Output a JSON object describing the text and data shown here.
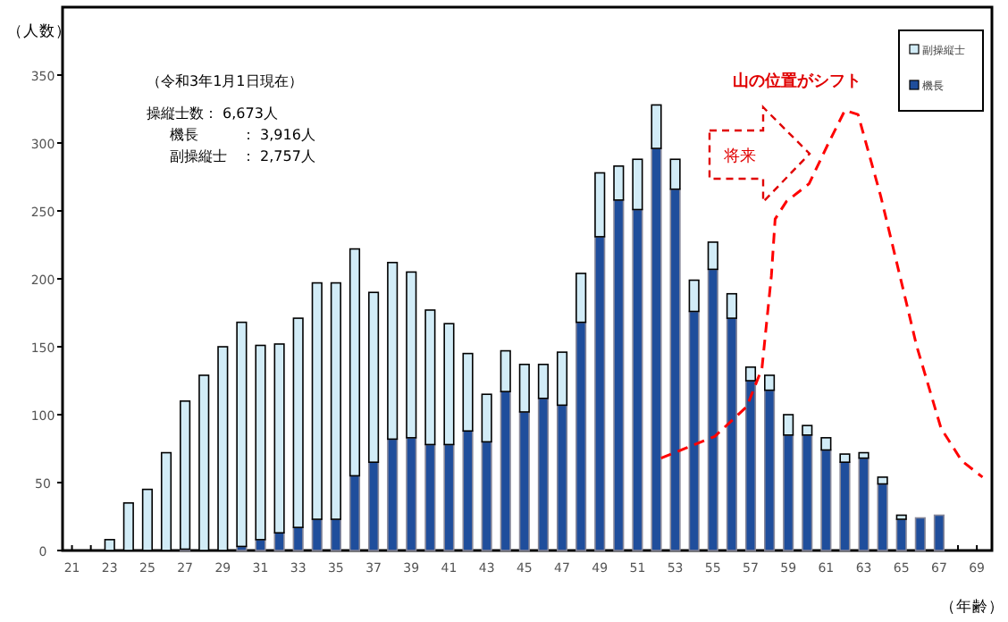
{
  "chart_data": {
    "type": "bar",
    "stacked": true,
    "ylabel": "（人数）",
    "xlabel": "（年齢）",
    "annotations": [
      "（令和3年1月1日現在）",
      "操縦士数： 6,673人",
      "機長　　　： 3,916人",
      "副操縦士　： 2,757人",
      "山の位置がシフト",
      "将来"
    ],
    "x": [
      21,
      22,
      23,
      24,
      25,
      26,
      27,
      28,
      29,
      30,
      31,
      32,
      33,
      34,
      35,
      36,
      37,
      38,
      39,
      40,
      41,
      42,
      43,
      44,
      45,
      46,
      47,
      48,
      49,
      50,
      51,
      52,
      53,
      54,
      55,
      56,
      57,
      58,
      59,
      60,
      61,
      62,
      63,
      64,
      65,
      66,
      67,
      68,
      69
    ],
    "series": [
      {
        "name": "機長",
        "color": "#1f4e9c",
        "values": [
          0,
          0,
          0,
          0,
          0,
          0,
          1,
          0,
          0,
          3,
          8,
          13,
          17,
          23,
          23,
          55,
          65,
          82,
          83,
          78,
          78,
          88,
          80,
          117,
          102,
          112,
          107,
          168,
          231,
          258,
          251,
          296,
          266,
          176,
          207,
          171,
          125,
          118,
          85,
          85,
          74,
          65,
          68,
          49,
          23,
          24,
          26,
          0,
          0
        ]
      },
      {
        "name": "副操縦士",
        "color": "#d2ecf7",
        "values": [
          0,
          0,
          8,
          35,
          45,
          72,
          109,
          129,
          150,
          165,
          143,
          139,
          154,
          174,
          174,
          167,
          125,
          130,
          122,
          99,
          89,
          57,
          35,
          30,
          35,
          25,
          39,
          36,
          47,
          25,
          37,
          32,
          22,
          23,
          20,
          18,
          10,
          11,
          15,
          7,
          9,
          6,
          4,
          5,
          3,
          0,
          0,
          0,
          0
        ]
      },
      {
        "type": "line",
        "color": "#ff0000",
        "line_style": "dashed",
        "x": [
          52.25,
          55.1,
          56.8,
          57.6,
          58.1,
          58.3,
          58.9,
          60.1,
          61.1,
          62.0,
          62.7,
          63.9,
          65.2,
          65.8,
          67.1,
          68.2,
          69.3
        ],
        "values": [
          68,
          84,
          106,
          134,
          202,
          244,
          257,
          270,
          299,
          324,
          321,
          261,
          186,
          151,
          90,
          66,
          54
        ]
      }
    ],
    "xlim": [
      20.5,
      69.8
    ],
    "ylim": [
      0,
      400
    ],
    "xticks": [
      21,
      23,
      25,
      27,
      29,
      31,
      33,
      35,
      37,
      39,
      41,
      43,
      45,
      47,
      49,
      51,
      53,
      55,
      57,
      59,
      61,
      63,
      65,
      67,
      69
    ],
    "yticks": [
      0,
      50,
      100,
      150,
      200,
      250,
      300,
      350
    ],
    "legend": "top right"
  }
}
